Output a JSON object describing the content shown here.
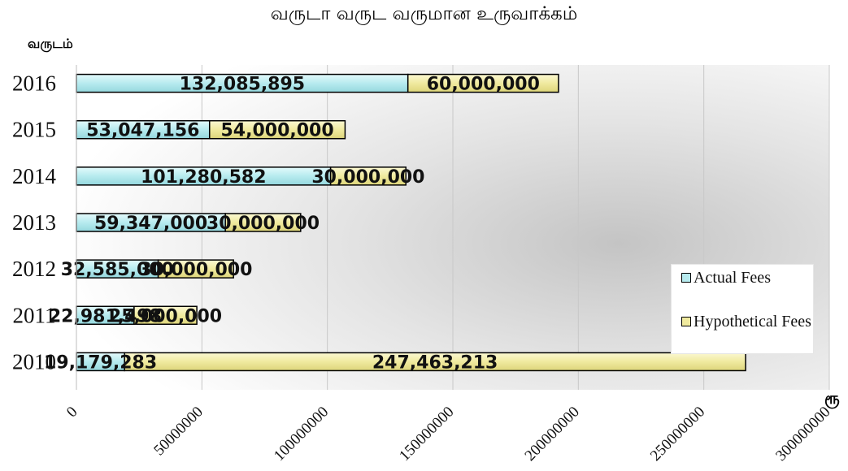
{
  "chart_data": {
    "type": "bar",
    "orientation": "horizontal",
    "stacked": true,
    "title": "வருடா வருட வருமான உருவாக்கம்",
    "ylabel": "வருடம்",
    "xlabel": "ரூ",
    "categories": [
      "2010",
      "2011",
      "2012",
      "2013",
      "2014",
      "2015",
      "2016"
    ],
    "series": [
      {
        "name": "Actual Fees",
        "color": "#b7ebef",
        "values": [
          19179283,
          22981498,
          32585000,
          59347000,
          101280582,
          53047156,
          132085895
        ],
        "labels": [
          "19,179,283",
          "22,981,498",
          "32,585,000",
          "59,347,000",
          "101,280,582",
          "53,047,156",
          "132,085,895"
        ]
      },
      {
        "name": "Hypothetical Fees",
        "color": "#f0ea9f",
        "values": [
          247463213,
          25000000,
          30000000,
          30000000,
          30000000,
          54000000,
          60000000
        ],
        "labels": [
          "247,463,213",
          "25,000,000",
          "30,000,000",
          "30,000,000",
          "30,000,000",
          "54,000,000",
          "60,000,000"
        ]
      }
    ],
    "xlim": [
      0,
      300000000
    ],
    "xticks": [
      "0",
      "50000000",
      "100000000",
      "150000000",
      "200000000",
      "250000000",
      "300000000"
    ],
    "grid": true,
    "legend_position": "right"
  }
}
